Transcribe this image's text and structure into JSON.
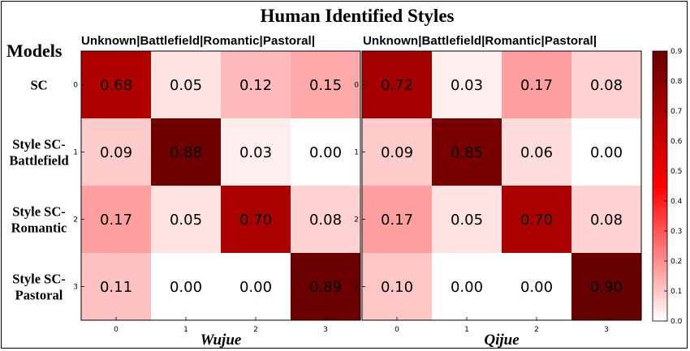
{
  "header": {
    "title": "Human Identified Styles",
    "models_label": "Models",
    "column_header": "Unknown|Battlefield|Romantic|Pastoral|"
  },
  "row_labels": [
    [
      "SC"
    ],
    [
      "Style SC-",
      "Battlefield"
    ],
    [
      "Style SC-",
      "Romantic"
    ],
    [
      "Style SC-",
      "Pastoral"
    ]
  ],
  "colorbar": {
    "min": 0.0,
    "max": 0.9,
    "ticks": [
      "0.0",
      "0.1",
      "0.2",
      "0.3",
      "0.4",
      "0.5",
      "0.6",
      "0.7",
      "0.8",
      "0.9"
    ],
    "colors": [
      "#ffffff",
      "#ff0000",
      "#670000"
    ]
  },
  "chart_data": [
    {
      "type": "heatmap",
      "title": "Wujue",
      "x_ticks": [
        "0",
        "1",
        "2",
        "3"
      ],
      "y_ticks": [
        "0",
        "1",
        "2",
        "3"
      ],
      "values": [
        [
          0.68,
          0.05,
          0.12,
          0.15
        ],
        [
          0.09,
          0.88,
          0.03,
          0.0
        ],
        [
          0.17,
          0.05,
          0.7,
          0.08
        ],
        [
          0.11,
          0.0,
          0.0,
          0.89
        ]
      ]
    },
    {
      "type": "heatmap",
      "title": "Qijue",
      "x_ticks": [
        "0",
        "1",
        "2",
        "3"
      ],
      "y_ticks": [
        "0",
        "1",
        "2",
        "3"
      ],
      "values": [
        [
          0.72,
          0.03,
          0.17,
          0.08
        ],
        [
          0.09,
          0.85,
          0.06,
          0.0
        ],
        [
          0.17,
          0.05,
          0.7,
          0.08
        ],
        [
          0.1,
          0.0,
          0.0,
          0.9
        ]
      ]
    }
  ]
}
